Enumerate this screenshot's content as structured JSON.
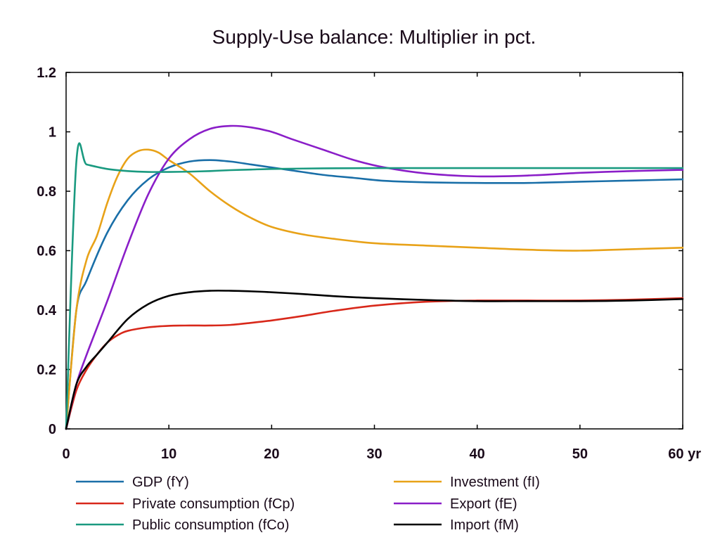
{
  "chart_data": {
    "type": "line",
    "title": "Supply-Use balance: Multiplier in pct.",
    "xlabel": "",
    "ylabel": "",
    "x_unit": "yr",
    "xlim": [
      0,
      60
    ],
    "ylim": [
      0,
      1.2
    ],
    "x_ticks": [
      0,
      10,
      20,
      30,
      40,
      50,
      60
    ],
    "x_tick_labels": [
      "0",
      "10",
      "20",
      "30",
      "40",
      "50",
      "60 yr"
    ],
    "y_ticks": [
      0,
      0.2,
      0.4,
      0.6,
      0.8,
      1.0,
      1.2
    ],
    "y_tick_labels": [
      "0",
      "0.2",
      "0.4",
      "0.6",
      "0.8",
      "1",
      "1.2"
    ],
    "grid": false,
    "legend_position": "bottom",
    "series": [
      {
        "name": "GDP (fY)",
        "color": "#1a6fa8",
        "points": [
          [
            0,
            0
          ],
          [
            1,
            0.4
          ],
          [
            2,
            0.5
          ],
          [
            4,
            0.66
          ],
          [
            6,
            0.77
          ],
          [
            8,
            0.84
          ],
          [
            10,
            0.88
          ],
          [
            12,
            0.9
          ],
          [
            14,
            0.905
          ],
          [
            16,
            0.9
          ],
          [
            18,
            0.89
          ],
          [
            20,
            0.88
          ],
          [
            22,
            0.87
          ],
          [
            25,
            0.855
          ],
          [
            28,
            0.845
          ],
          [
            31,
            0.835
          ],
          [
            35,
            0.83
          ],
          [
            40,
            0.828
          ],
          [
            45,
            0.828
          ],
          [
            50,
            0.832
          ],
          [
            55,
            0.836
          ],
          [
            60,
            0.84
          ]
        ]
      },
      {
        "name": "Investment (fI)",
        "color": "#e8a218",
        "points": [
          [
            0,
            0
          ],
          [
            1,
            0.4
          ],
          [
            2,
            0.57
          ],
          [
            3,
            0.65
          ],
          [
            4,
            0.76
          ],
          [
            5,
            0.85
          ],
          [
            6,
            0.91
          ],
          [
            7,
            0.935
          ],
          [
            8,
            0.94
          ],
          [
            9,
            0.93
          ],
          [
            10,
            0.905
          ],
          [
            12,
            0.86
          ],
          [
            14,
            0.8
          ],
          [
            16,
            0.75
          ],
          [
            18,
            0.71
          ],
          [
            20,
            0.68
          ],
          [
            23,
            0.655
          ],
          [
            26,
            0.64
          ],
          [
            30,
            0.625
          ],
          [
            35,
            0.617
          ],
          [
            40,
            0.61
          ],
          [
            45,
            0.603
          ],
          [
            50,
            0.6
          ],
          [
            55,
            0.605
          ],
          [
            60,
            0.61
          ]
        ]
      },
      {
        "name": "Private consumption (fCp)",
        "color": "#d8281a",
        "points": [
          [
            0,
            0
          ],
          [
            1,
            0.13
          ],
          [
            2,
            0.2
          ],
          [
            3,
            0.25
          ],
          [
            4,
            0.29
          ],
          [
            5,
            0.315
          ],
          [
            6,
            0.33
          ],
          [
            8,
            0.342
          ],
          [
            10,
            0.347
          ],
          [
            12,
            0.348
          ],
          [
            14,
            0.348
          ],
          [
            16,
            0.35
          ],
          [
            18,
            0.357
          ],
          [
            20,
            0.365
          ],
          [
            23,
            0.38
          ],
          [
            26,
            0.397
          ],
          [
            30,
            0.415
          ],
          [
            35,
            0.428
          ],
          [
            40,
            0.432
          ],
          [
            45,
            0.432
          ],
          [
            50,
            0.432
          ],
          [
            55,
            0.435
          ],
          [
            60,
            0.44
          ]
        ]
      },
      {
        "name": "Export (fE)",
        "color": "#8a1ec8",
        "points": [
          [
            0,
            0
          ],
          [
            1,
            0.15
          ],
          [
            2,
            0.25
          ],
          [
            4,
            0.43
          ],
          [
            6,
            0.62
          ],
          [
            8,
            0.79
          ],
          [
            10,
            0.91
          ],
          [
            12,
            0.975
          ],
          [
            14,
            1.01
          ],
          [
            16,
            1.02
          ],
          [
            18,
            1.015
          ],
          [
            20,
            1.0
          ],
          [
            22,
            0.975
          ],
          [
            25,
            0.94
          ],
          [
            28,
            0.905
          ],
          [
            31,
            0.88
          ],
          [
            35,
            0.86
          ],
          [
            40,
            0.85
          ],
          [
            45,
            0.853
          ],
          [
            50,
            0.862
          ],
          [
            55,
            0.868
          ],
          [
            60,
            0.872
          ]
        ]
      },
      {
        "name": "Public consumption (fCo)",
        "color": "#1a9a80",
        "points": [
          [
            0,
            0
          ],
          [
            1,
            0.9
          ],
          [
            2,
            0.89
          ],
          [
            4,
            0.875
          ],
          [
            6,
            0.868
          ],
          [
            8,
            0.865
          ],
          [
            10,
            0.865
          ],
          [
            12,
            0.866
          ],
          [
            14,
            0.868
          ],
          [
            16,
            0.871
          ],
          [
            18,
            0.873
          ],
          [
            20,
            0.875
          ],
          [
            25,
            0.877
          ],
          [
            30,
            0.878
          ],
          [
            40,
            0.878
          ],
          [
            50,
            0.878
          ],
          [
            60,
            0.878
          ]
        ]
      },
      {
        "name": "Import (fM)",
        "color": "#000000",
        "points": [
          [
            0,
            0
          ],
          [
            1,
            0.15
          ],
          [
            2,
            0.21
          ],
          [
            3,
            0.25
          ],
          [
            4,
            0.29
          ],
          [
            6,
            0.37
          ],
          [
            8,
            0.42
          ],
          [
            10,
            0.448
          ],
          [
            12,
            0.46
          ],
          [
            14,
            0.465
          ],
          [
            16,
            0.465
          ],
          [
            18,
            0.463
          ],
          [
            20,
            0.46
          ],
          [
            23,
            0.454
          ],
          [
            26,
            0.447
          ],
          [
            30,
            0.44
          ],
          [
            35,
            0.434
          ],
          [
            40,
            0.43
          ],
          [
            45,
            0.43
          ],
          [
            50,
            0.43
          ],
          [
            55,
            0.432
          ],
          [
            60,
            0.437
          ]
        ]
      }
    ]
  }
}
